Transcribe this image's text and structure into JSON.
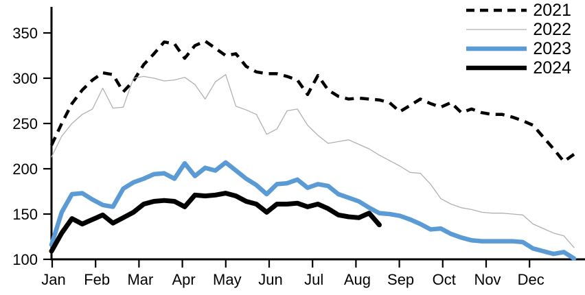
{
  "chart_data": {
    "type": "line",
    "title": "",
    "xlabel": "",
    "ylabel": "",
    "grid": false,
    "legend_position": "top-right",
    "background": "#ffffff",
    "axis_color": "#000000",
    "x_axis": {
      "unit": "weeks",
      "month_labels": [
        "Jan",
        "Feb",
        "Mar",
        "Apr",
        "May",
        "Jun",
        "Jul",
        "Aug",
        "Sep",
        "Oct",
        "Nov",
        "Dec"
      ]
    },
    "y_axis": {
      "min": 100,
      "max": 350,
      "ticks": [
        100,
        150,
        200,
        250,
        300,
        350
      ]
    },
    "weeks": 52,
    "series": [
      {
        "name": "2021",
        "color": "#000000",
        "style": "dashed",
        "width": 4.5,
        "values": [
          226,
          250,
          272,
          287,
          298,
          306,
          304,
          285,
          297,
          315,
          327,
          340,
          338,
          322,
          336,
          341,
          333,
          325,
          327,
          313,
          307,
          305,
          305,
          302,
          298,
          282,
          303,
          287,
          280,
          277,
          278,
          277,
          276,
          273,
          263,
          270,
          277,
          272,
          268,
          273,
          262,
          266,
          262,
          260,
          260,
          257,
          253,
          248,
          235,
          222,
          208,
          216
        ]
      },
      {
        "name": "2022",
        "color": "#b0b0b0",
        "style": "solid",
        "width": 1.3,
        "values": [
          213,
          236,
          250,
          260,
          266,
          289,
          267,
          268,
          300,
          302,
          300,
          297,
          298,
          301,
          293,
          277,
          296,
          304,
          269,
          265,
          260,
          238,
          244,
          264,
          266,
          248,
          237,
          228,
          230,
          232,
          227,
          222,
          215,
          209,
          203,
          196,
          195,
          183,
          167,
          161,
          157,
          155,
          152,
          151,
          151,
          150,
          149,
          139,
          134,
          129,
          126,
          113
        ]
      },
      {
        "name": "2023",
        "color": "#5b9bd5",
        "style": "solid",
        "width": 6.5,
        "values": [
          116,
          152,
          172,
          173,
          166,
          160,
          158,
          178,
          185,
          189,
          194,
          195,
          189,
          206,
          192,
          201,
          198,
          207,
          198,
          189,
          182,
          172,
          183,
          184,
          188,
          179,
          183,
          181,
          172,
          168,
          164,
          157,
          151,
          150,
          148,
          144,
          139,
          133,
          134,
          128,
          124,
          121,
          120,
          120,
          120,
          120,
          119,
          112,
          109,
          106,
          108,
          101
        ]
      },
      {
        "name": "2024",
        "color": "#000000",
        "style": "solid",
        "width": 7,
        "values": [
          109,
          129,
          145,
          139,
          144,
          149,
          140,
          146,
          152,
          161,
          164,
          165,
          164,
          158,
          171,
          170,
          171,
          173,
          170,
          164,
          161,
          152,
          161,
          161,
          162,
          158,
          161,
          156,
          149,
          147,
          146,
          151,
          138
        ]
      }
    ]
  }
}
